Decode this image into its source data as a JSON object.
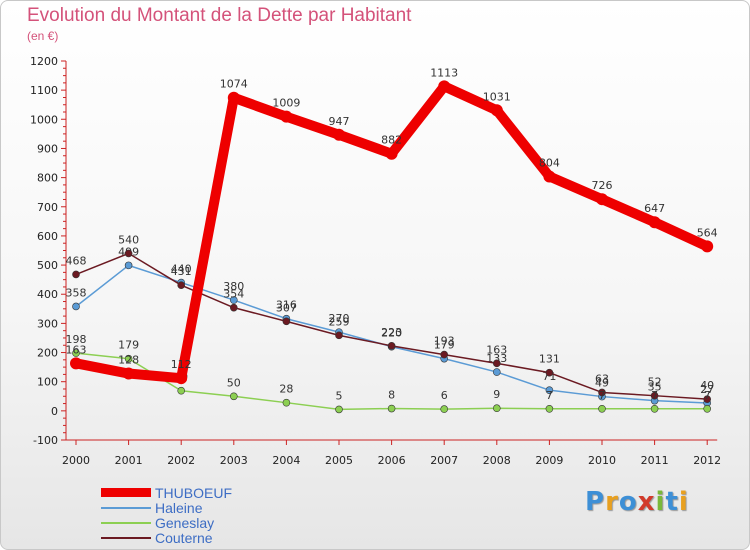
{
  "chart_data": {
    "type": "line",
    "title": "Evolution du Montant de la Dette par Habitant",
    "unit_label": "(en €)",
    "xlabel": "",
    "ylabel": "",
    "ylim": [
      -100,
      1200
    ],
    "yticks": [
      -100,
      0,
      100,
      200,
      300,
      400,
      500,
      600,
      700,
      800,
      900,
      1000,
      1100,
      1200
    ],
    "categories": [
      "2000",
      "2001",
      "2002",
      "2003",
      "2004",
      "2005",
      "2006",
      "2007",
      "2008",
      "2009",
      "2010",
      "2011",
      "2012"
    ],
    "grid": false,
    "legend_position": "bottom-left",
    "series": [
      {
        "name": "Haleine",
        "color": "#5b9bd5",
        "values": [
          358,
          499,
          440,
          380,
          316,
          270,
          220,
          179,
          133,
          71,
          49,
          35,
          27
        ]
      },
      {
        "name": "Couterne",
        "color": "#6b1a22",
        "values": [
          468,
          540,
          431,
          354,
          307,
          259,
          223,
          193,
          163,
          131,
          63,
          52,
          40
        ]
      },
      {
        "name": "Geneslay",
        "color": "#8ccf52",
        "values": [
          198,
          179,
          69,
          50,
          28,
          5,
          8,
          6,
          9,
          7,
          7,
          7,
          7
        ]
      },
      {
        "name": "THUBOEUF",
        "color": "#ee0000",
        "values": [
          163,
          128,
          112,
          1074,
          1009,
          947,
          882,
          1113,
          1031,
          804,
          726,
          647,
          564
        ]
      }
    ],
    "legend_order": [
      "THUBOEUF",
      "Haleine",
      "Geneslay",
      "Couterne"
    ]
  },
  "logo": {
    "letters": [
      {
        "char": "P",
        "color": "#3d8fd6"
      },
      {
        "char": "r",
        "color": "#e8a020"
      },
      {
        "char": "o",
        "color": "#3d8fd6"
      },
      {
        "char": "x",
        "color": "#d23a2a"
      },
      {
        "char": "i",
        "color": "#7ab83a"
      },
      {
        "char": "t",
        "color": "#3d8fd6"
      },
      {
        "char": "i",
        "color": "#e8a020"
      }
    ]
  }
}
